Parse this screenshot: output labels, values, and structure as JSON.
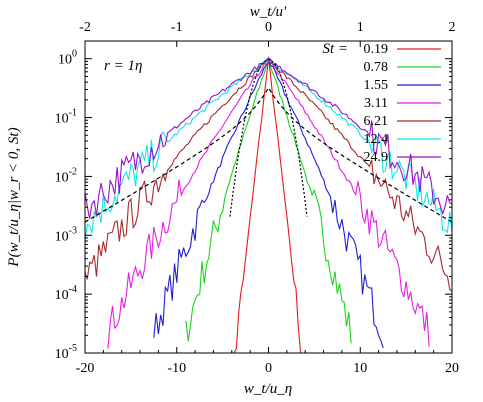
{
  "chart_data": {
    "type": "line",
    "annotation": "r = 1η",
    "xlabel": "w_t/u_η",
    "x2label": "w_t/u'",
    "ylabel": "P(w_t/u_η|w_r < 0, St)",
    "xlim": [
      -20,
      20
    ],
    "ylim": [
      1e-05,
      2
    ],
    "yscale": "log",
    "x_ticks": [
      "-20",
      "-10",
      "0",
      "10",
      "20"
    ],
    "x2_ticks": [
      "-2",
      "-1",
      "0",
      "1",
      "2"
    ],
    "y_ticks": [
      "10^-5",
      "10^-4",
      "10^-3",
      "10^-2",
      "10^-1",
      "10^0"
    ],
    "legend_title": "St =",
    "legend_position": "top-right",
    "grid": false,
    "series": [
      {
        "name": "0.19",
        "color": "#e41a1c",
        "peak": 0.95,
        "slope": 3.0,
        "halfwidth": 5.0,
        "kind": "exp"
      },
      {
        "name": "0.78",
        "color": "#1cd41c",
        "peak": 0.95,
        "slope": 1.05,
        "halfwidth": 9.0,
        "kind": "exp"
      },
      {
        "name": "1.55",
        "color": "#1f1fd6",
        "peak": 0.95,
        "slope": 0.72,
        "halfwidth": 12.5,
        "kind": "exp"
      },
      {
        "name": "3.11",
        "color": "#e61ee6",
        "peak": 0.95,
        "slope": 0.48,
        "halfwidth": 17.5,
        "kind": "exp"
      },
      {
        "name": "6.21",
        "color": "#a52a2a",
        "peak": 0.95,
        "slope": 0.33,
        "halfwidth": 20.0,
        "kind": "exp"
      },
      {
        "name": "12.4",
        "color": "#10e6e6",
        "peak": 0.95,
        "slope": 0.25,
        "halfwidth": 20.0,
        "kind": "exp"
      },
      {
        "name": "24.9",
        "color": "#9a10cc",
        "peak": 0.95,
        "slope": 0.226,
        "halfwidth": 20.0,
        "kind": "exp"
      }
    ],
    "reference_curves": [
      {
        "color": "#000000",
        "dash": "4,3",
        "kind": "wide",
        "peak": 0.32
      },
      {
        "color": "#000000",
        "dash": "2,2",
        "kind": "gauss",
        "peak": 0.95,
        "sigma": 1.2
      }
    ]
  }
}
